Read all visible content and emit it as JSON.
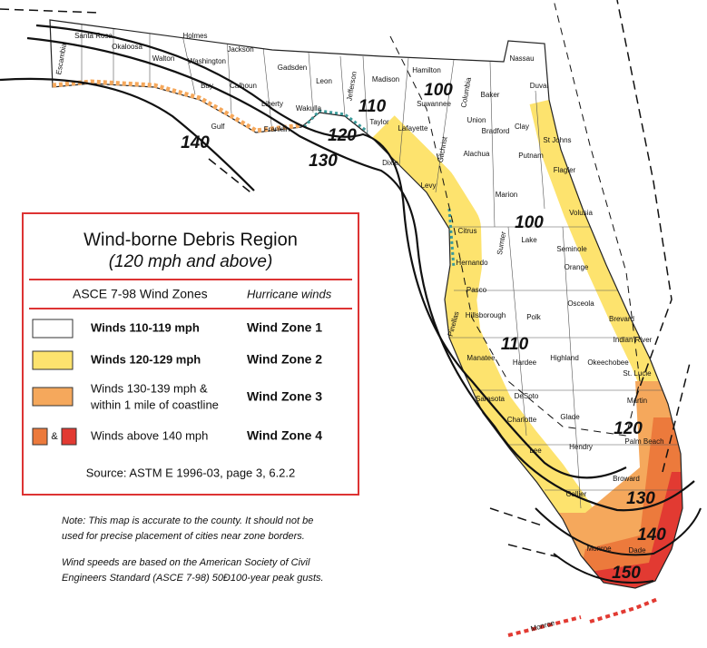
{
  "map": {
    "counties": [
      "Santa Rosa",
      "Escambia",
      "Okaloosa",
      "Walton",
      "Holmes",
      "Washington",
      "Jackson",
      "Bay",
      "Calhoun",
      "Gadsden",
      "Leon",
      "Jefferson",
      "Madison",
      "Hamilton",
      "Nassau",
      "Duval",
      "Gulf",
      "Liberty",
      "Wakulla",
      "Franklin",
      "Taylor",
      "Suwannee",
      "Columbia",
      "Baker",
      "Lafayette",
      "Union",
      "Bradford",
      "Clay",
      "St Johns",
      "Dixie",
      "Gilchrist",
      "Alachua",
      "Putnam",
      "Flagler",
      "Levy",
      "Marion",
      "Volusia",
      "Citrus",
      "Sumter",
      "Lake",
      "Seminole",
      "Hernando",
      "Orange",
      "Pasco",
      "Osceola",
      "Pinellas",
      "Hillsborough",
      "Polk",
      "Brevard",
      "Indian River",
      "Manatee",
      "Hardee",
      "Highland",
      "Okeechobee",
      "St. Lucie",
      "Sarasota",
      "DeSoto",
      "Martin",
      "Charlotte",
      "Glade",
      "Palm Beach",
      "Lee",
      "Hendry",
      "Broward",
      "Collier",
      "Monroe",
      "Dade",
      "Monroe"
    ],
    "contours": [
      "140",
      "120",
      "130",
      "110",
      "100",
      "100",
      "110",
      "120",
      "130",
      "140",
      "150"
    ]
  },
  "legend": {
    "title": "Wind-borne Debris Region",
    "subtitle": "(120 mph and above)",
    "column_headers": [
      "ASCE 7-98 Wind Zones",
      "Hurricane winds"
    ],
    "rows": [
      {
        "description": [
          "Winds 110-119 mph"
        ],
        "zone": "Wind Zone 1",
        "colors": [
          "#ffffff"
        ]
      },
      {
        "description": [
          "Winds 120-129 mph"
        ],
        "zone": "Wind Zone 2",
        "colors": [
          "#fde36e"
        ]
      },
      {
        "description": [
          "Winds 130-139 mph &",
          "within 1 mile of coastline"
        ],
        "zone": "Wind Zone 3",
        "colors": [
          "#f5a85c"
        ]
      },
      {
        "description": [
          "Winds above 140 mph"
        ],
        "zone": "Wind Zone 4",
        "colors": [
          "#ec7a3c",
          "#e23a32"
        ],
        "joiner": "&"
      }
    ],
    "source": "Source: ASTM E 1996-03, page 3, 6.2.2"
  },
  "notes": [
    [
      "Note: This map is accurate to the county. It should not be",
      "used for precise placement of cities near zone borders."
    ],
    [
      "Wind speeds are based on the American Society of Civil",
      "Engineers Standard (ASCE 7-98) 50Ð100-year peak gusts."
    ]
  ]
}
